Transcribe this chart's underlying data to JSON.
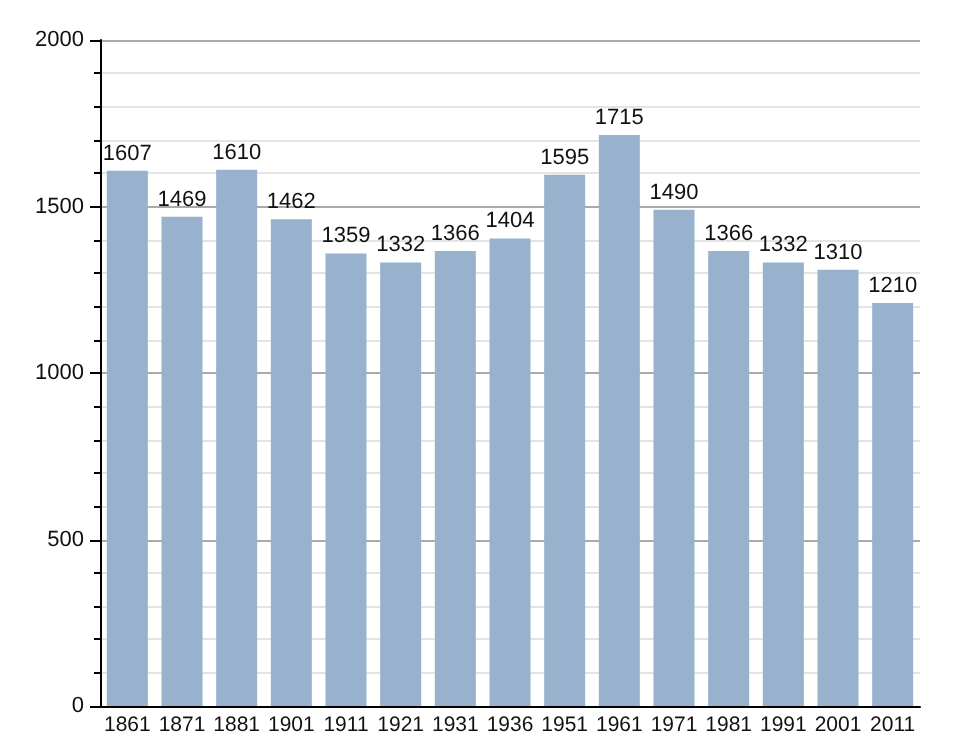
{
  "chart_data": {
    "type": "bar",
    "categories": [
      "1861",
      "1871",
      "1881",
      "1901",
      "1911",
      "1921",
      "1931",
      "1936",
      "1951",
      "1961",
      "1971",
      "1981",
      "1991",
      "2001",
      "2011"
    ],
    "values": [
      1607,
      1469,
      1610,
      1462,
      1359,
      1332,
      1366,
      1404,
      1595,
      1715,
      1490,
      1366,
      1332,
      1310,
      1210
    ],
    "color": "#98b1cc",
    "ylim": [
      0,
      2000
    ],
    "yticks": [
      0,
      500,
      1000,
      1500,
      2000
    ],
    "grid": "y",
    "data_labels": true
  }
}
